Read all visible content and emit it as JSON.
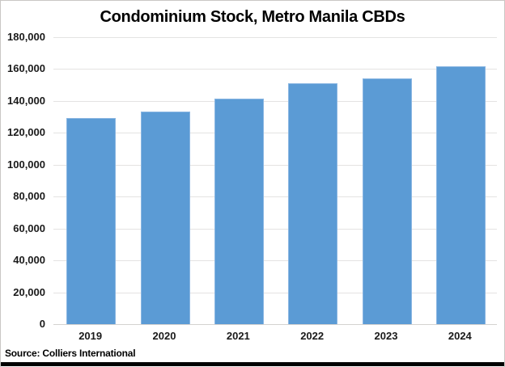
{
  "chart_data": {
    "type": "bar",
    "title": "Condominium Stock, Metro Manila CBDs",
    "categories": [
      "2019",
      "2020",
      "2021",
      "2022",
      "2023",
      "2024"
    ],
    "values": [
      129500,
      133500,
      141500,
      151000,
      154000,
      161500
    ],
    "xlabel": "",
    "ylabel": "",
    "ylim": [
      0,
      180000
    ],
    "ytick_step": 20000,
    "ytick_labels": [
      "0",
      "20,000",
      "40,000",
      "60,000",
      "80,000",
      "100,000",
      "120,000",
      "140,000",
      "160,000",
      "180,000"
    ],
    "grid": true,
    "legend": false,
    "bar_color": "#5b9bd5",
    "bar_border_color": "#8ab6e2",
    "gridline_color": "#e4e3e2",
    "frame_border_color": "#c9c7c5",
    "source": "Source: Colliers International"
  }
}
